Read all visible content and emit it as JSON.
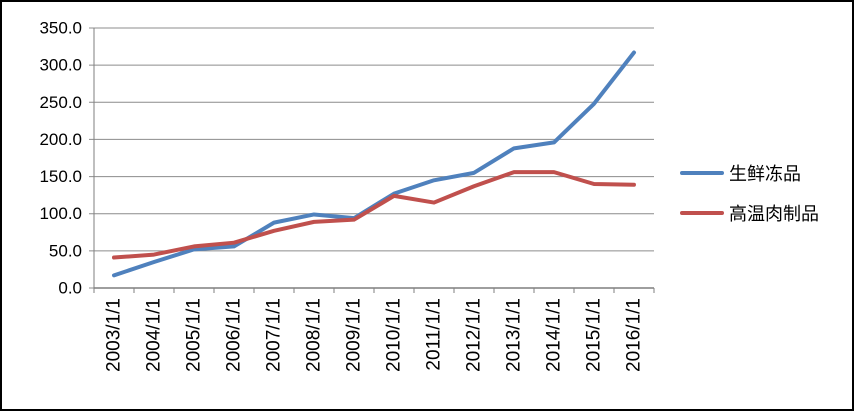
{
  "chart_data": {
    "type": "line",
    "title": "",
    "xlabel": "",
    "ylabel": "",
    "categories": [
      "2003/1/1",
      "2004/1/1",
      "2005/1/1",
      "2006/1/1",
      "2007/1/1",
      "2008/1/1",
      "2009/1/1",
      "2010/1/1",
      "2011/1/1",
      "2012/1/1",
      "2013/1/1",
      "2014/1/1",
      "2015/1/1",
      "2016/1/1"
    ],
    "series": [
      {
        "name": "生鲜冻品",
        "color": "#4F81BD",
        "values": [
          17,
          35,
          52,
          56,
          88,
          99,
          94,
          127,
          145,
          155,
          188,
          196,
          248,
          317
        ]
      },
      {
        "name": "高温肉制品",
        "color": "#C0504D",
        "values": [
          41,
          45,
          56,
          61,
          77,
          89,
          92,
          124,
          115,
          137,
          156,
          156,
          140,
          139
        ]
      }
    ],
    "ylim": [
      0,
      350
    ],
    "yticks": [
      0,
      50,
      100,
      150,
      200,
      250,
      300,
      350
    ],
    "ytick_decimals": 1,
    "grid": true,
    "legend_position": "right",
    "grid_color": "#8C8C8C",
    "axis_color": "#7F7F7F",
    "line_width": 4
  }
}
